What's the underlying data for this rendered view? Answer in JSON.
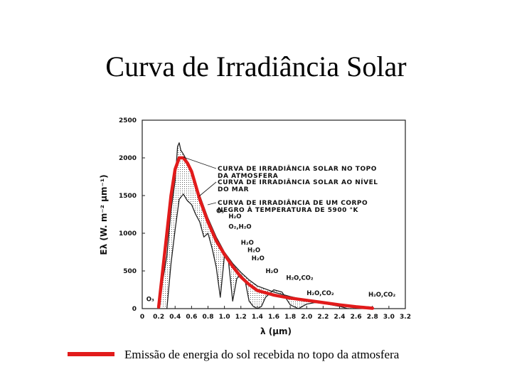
{
  "slide": {
    "title": "Curva de Irradiância Solar",
    "legend_text": "Emissão de energia do sol recebida no topo da atmosfera",
    "legend_color": "#e21b1b"
  },
  "chart_data": {
    "type": "line",
    "title": "",
    "xlabel": "λ (μm)",
    "ylabel": "Eλ (W. m⁻² μm⁻¹)",
    "xlim": [
      0,
      3.2
    ],
    "ylim": [
      0,
      2500
    ],
    "x_ticks": [
      "0",
      "0.2",
      "0.4",
      "0.6",
      "0.8",
      "1.0",
      "1.2",
      "1.4",
      "1.6",
      "1.8",
      "2.0",
      "2.2",
      "2.4",
      "2.6",
      "2.8",
      "3.0",
      "3.2"
    ],
    "y_ticks": [
      "0",
      "500",
      "1000",
      "1500",
      "2000",
      "2500"
    ],
    "annotations": [
      "CURVA DE IRRADIÂNCIA SOLAR NO TOPO",
      "DA ATMOSFERA",
      "CURVA DE IRRADIÂNCIA SOLAR AO NÍVEL",
      "DO MAR",
      "CURVA DE IRRADIÂNCIA DE UM CORPO",
      "NEGRO À TEMPERATURA DE 5900 °K"
    ],
    "absorption_labels": [
      {
        "text": "O₃",
        "x": 0.05,
        "y": 100
      },
      {
        "text": "O₃",
        "x": 0.9,
        "y": 1270
      },
      {
        "text": "H₂O",
        "x": 1.05,
        "y": 1200
      },
      {
        "text": "O₂,H₂O",
        "x": 1.05,
        "y": 1060
      },
      {
        "text": "H₂O",
        "x": 1.2,
        "y": 850
      },
      {
        "text": "H₂O",
        "x": 1.28,
        "y": 750
      },
      {
        "text": "H₂O",
        "x": 1.33,
        "y": 640
      },
      {
        "text": "H₂O",
        "x": 1.5,
        "y": 470
      },
      {
        "text": "H₂O,CO₂",
        "x": 1.75,
        "y": 380
      },
      {
        "text": "H₂O,CO₂",
        "x": 2.0,
        "y": 180
      },
      {
        "text": "H₂O,CO₂",
        "x": 2.75,
        "y": 160
      }
    ],
    "series": [
      {
        "name": "Emissão de energia do sol recebida no topo da atmosfera",
        "color": "#e21b1b",
        "x": [
          0.2,
          0.3,
          0.35,
          0.4,
          0.45,
          0.5,
          0.55,
          0.6,
          0.7,
          0.8,
          0.9,
          1.0,
          1.1,
          1.2,
          1.3,
          1.4,
          1.6,
          1.8,
          2.0,
          2.2,
          2.4,
          2.6,
          2.8
        ],
        "values": [
          20,
          1000,
          1500,
          1850,
          2000,
          2000,
          1930,
          1820,
          1450,
          1150,
          900,
          720,
          560,
          420,
          320,
          240,
          180,
          140,
          110,
          80,
          50,
          25,
          5
        ]
      },
      {
        "name": "",
        "color": "#222222",
        "x": [
          0.2,
          0.3,
          0.35,
          0.4,
          0.43,
          0.45,
          0.47,
          0.5,
          0.55,
          0.6,
          0.65,
          0.7,
          0.8,
          0.9,
          1.0,
          1.1,
          1.2,
          1.3,
          1.4,
          1.6,
          1.8,
          2.0,
          2.2,
          2.4,
          2.6,
          2.8
        ],
        "values": [
          50,
          700,
          1300,
          1700,
          2150,
          2200,
          2100,
          2050,
          1950,
          1800,
          1650,
          1500,
          1200,
          950,
          750,
          600,
          480,
          380,
          300,
          220,
          160,
          110,
          80,
          55,
          35,
          20
        ]
      },
      {
        "name": "",
        "color": "#222222",
        "x": [
          0.3,
          0.35,
          0.4,
          0.45,
          0.5,
          0.55,
          0.6,
          0.65,
          0.7,
          0.75,
          0.8,
          0.85,
          0.9,
          0.95,
          1.0,
          1.05,
          1.1,
          1.15,
          1.2,
          1.25,
          1.3,
          1.35,
          1.4,
          1.45,
          1.5,
          1.6,
          1.7,
          1.8,
          1.9,
          2.0,
          2.1,
          2.2,
          2.3,
          2.4,
          2.5
        ],
        "values": [
          0,
          600,
          1050,
          1450,
          1520,
          1430,
          1380,
          1250,
          1150,
          950,
          1000,
          800,
          550,
          150,
          700,
          620,
          100,
          400,
          450,
          380,
          100,
          30,
          0,
          30,
          150,
          250,
          220,
          50,
          0,
          60,
          80,
          70,
          50,
          30,
          0
        ]
      }
    ]
  }
}
